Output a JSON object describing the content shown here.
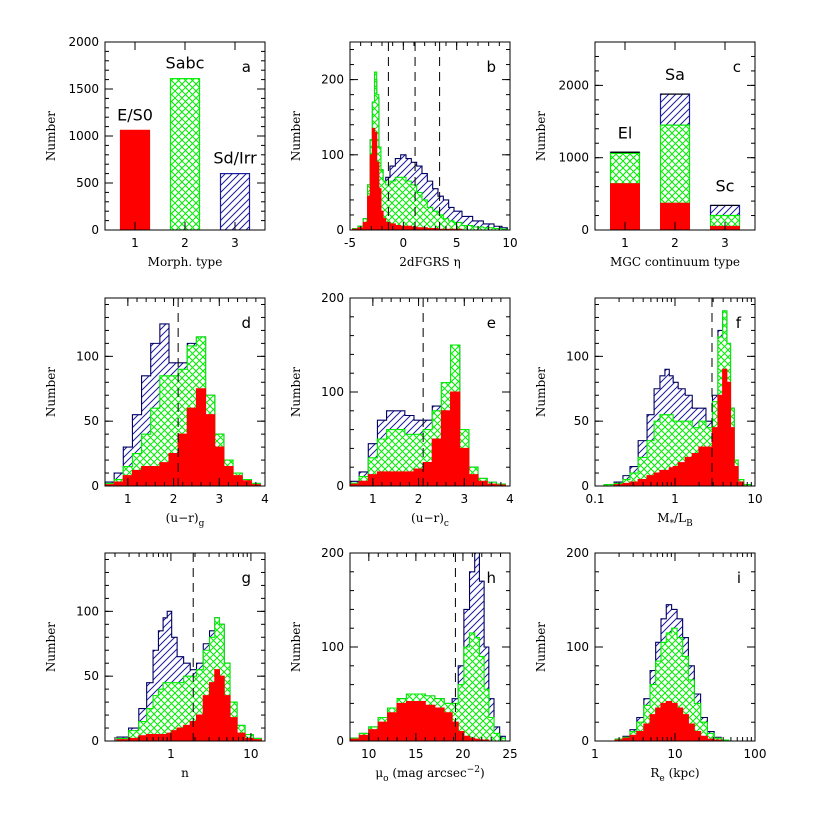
{
  "colors": {
    "red": "#ff0000",
    "green": "#00ee00",
    "blue": "#1a1a9c",
    "frame": "#000000"
  },
  "chart_data": [
    {
      "id": "a",
      "type": "bar",
      "letter": "a",
      "xlabel": "Morph. type",
      "ylabel": "Number",
      "xlim": [
        0.4,
        3.6
      ],
      "ylim": [
        0,
        2000
      ],
      "xticks": [
        1,
        2,
        3
      ],
      "yticks": [
        0,
        500,
        1000,
        1500,
        2000
      ],
      "bars": [
        {
          "x": 1,
          "value": 1060,
          "style": "red",
          "label": "E/S0"
        },
        {
          "x": 2,
          "value": 1610,
          "style": "green",
          "label": "Sabc"
        },
        {
          "x": 3,
          "value": 600,
          "style": "blue",
          "label": "Sd/Irr"
        }
      ]
    },
    {
      "id": "b",
      "type": "histogram",
      "letter": "b",
      "xlabel": "2dFGRS η",
      "ylabel": "Number",
      "xlim": [
        -5,
        10
      ],
      "ylim": [
        0,
        250
      ],
      "xticks": [
        -5,
        0,
        5,
        10
      ],
      "yticks": [
        0,
        100,
        200
      ],
      "dividers": [
        -1.4,
        1.1,
        3.4
      ],
      "x": [
        -4.5,
        -4,
        -3.5,
        -3.2,
        -3,
        -2.8,
        -2.6,
        -2.4,
        -2.2,
        -2,
        -1.8,
        -1.5,
        -1,
        -0.5,
        0,
        0.5,
        1,
        1.5,
        2,
        2.5,
        3,
        3.5,
        4,
        4.5,
        5,
        6,
        7,
        8,
        9,
        9.5
      ],
      "series": [
        {
          "style": "blue",
          "values": [
            2,
            5,
            15,
            60,
            120,
            170,
            200,
            175,
            110,
            80,
            65,
            70,
            85,
            95,
            100,
            95,
            90,
            85,
            75,
            65,
            55,
            45,
            40,
            30,
            25,
            18,
            12,
            8,
            5,
            3
          ]
        },
        {
          "style": "green",
          "values": [
            2,
            5,
            15,
            60,
            120,
            170,
            210,
            180,
            110,
            80,
            65,
            60,
            65,
            70,
            70,
            65,
            60,
            50,
            40,
            30,
            25,
            20,
            15,
            12,
            10,
            6,
            4,
            3,
            2,
            1
          ]
        },
        {
          "style": "red",
          "values": [
            1,
            3,
            10,
            45,
            100,
            135,
            130,
            90,
            55,
            25,
            15,
            10,
            8,
            6,
            5,
            5,
            4,
            3,
            3,
            2,
            2,
            1,
            1,
            1,
            1,
            0,
            0,
            0,
            0,
            0
          ]
        }
      ]
    },
    {
      "id": "c",
      "type": "bar",
      "letter": "c",
      "xlabel": "MGC continuum type",
      "ylabel": "Number",
      "xlim": [
        0.4,
        3.6
      ],
      "ylim": [
        0,
        2600
      ],
      "xticks": [
        1,
        2,
        3
      ],
      "yticks": [
        0,
        1000,
        2000
      ],
      "stacks": [
        {
          "x": 1,
          "label": "El",
          "red": 640,
          "green": 1060,
          "blue": 1075
        },
        {
          "x": 2,
          "label": "Sa",
          "red": 370,
          "green": 1450,
          "blue": 1880
        },
        {
          "x": 3,
          "label": "Sc",
          "red": 50,
          "green": 200,
          "blue": 340
        }
      ]
    },
    {
      "id": "d",
      "type": "histogram",
      "letter": "d",
      "xlabel": "(u−r)",
      "xlabel_sub": "g",
      "ylabel": "Number",
      "xlim": [
        0.5,
        4
      ],
      "ylim": [
        0,
        145
      ],
      "xticks": [
        1,
        2,
        3,
        4
      ],
      "yticks": [
        0,
        50,
        100
      ],
      "dividers": [
        2.1
      ],
      "x": [
        0.6,
        0.8,
        1,
        1.2,
        1.4,
        1.6,
        1.8,
        2,
        2.2,
        2.4,
        2.6,
        2.8,
        3,
        3.2,
        3.4,
        3.6,
        3.8
      ],
      "series": [
        {
          "style": "blue",
          "values": [
            3,
            10,
            30,
            55,
            85,
            110,
            125,
            95,
            95,
            110,
            115,
            70,
            40,
            20,
            10,
            5,
            2
          ]
        },
        {
          "style": "green",
          "values": [
            2,
            5,
            15,
            25,
            40,
            60,
            85,
            85,
            90,
            108,
            115,
            70,
            40,
            20,
            10,
            5,
            2
          ]
        },
        {
          "style": "red",
          "values": [
            1,
            3,
            8,
            12,
            15,
            15,
            18,
            25,
            40,
            60,
            75,
            55,
            30,
            15,
            8,
            4,
            1
          ]
        }
      ]
    },
    {
      "id": "e",
      "type": "histogram",
      "letter": "e",
      "xlabel": "(u−r)",
      "xlabel_sub": "c",
      "ylabel": "Number",
      "xlim": [
        0.5,
        4
      ],
      "ylim": [
        0,
        200
      ],
      "xticks": [
        1,
        2,
        3,
        4
      ],
      "yticks": [
        0,
        100,
        200
      ],
      "dividers": [
        2.1
      ],
      "x": [
        0.6,
        0.8,
        1,
        1.2,
        1.4,
        1.6,
        1.8,
        2,
        2.2,
        2.4,
        2.6,
        2.8,
        3,
        3.2,
        3.4,
        3.6,
        3.8
      ],
      "series": [
        {
          "style": "blue",
          "values": [
            5,
            15,
            45,
            70,
            80,
            80,
            75,
            70,
            70,
            85,
            110,
            150,
            60,
            20,
            8,
            4,
            2
          ]
        },
        {
          "style": "green",
          "values": [
            3,
            10,
            30,
            50,
            60,
            60,
            55,
            55,
            60,
            80,
            110,
            150,
            60,
            20,
            8,
            4,
            2
          ]
        },
        {
          "style": "red",
          "values": [
            2,
            5,
            12,
            15,
            15,
            15,
            15,
            18,
            25,
            50,
            80,
            100,
            40,
            12,
            5,
            2,
            1
          ]
        }
      ]
    },
    {
      "id": "f",
      "type": "histogram",
      "letter": "f",
      "xscale": "log",
      "xlabel": "M",
      "xlabel_sub": "*",
      "xlabel_tail": "/L",
      "xlabel_sub2": "B",
      "ylabel": "Number",
      "xlim": [
        0.1,
        10
      ],
      "ylim": [
        0,
        145
      ],
      "xticks": [
        0.1,
        1,
        10
      ],
      "yticks": [
        0,
        50,
        100
      ],
      "dividers": [
        2.9
      ],
      "x": [
        0.15,
        0.2,
        0.25,
        0.3,
        0.4,
        0.5,
        0.6,
        0.7,
        0.8,
        0.9,
        1,
        1.2,
        1.5,
        1.8,
        2.2,
        2.7,
        3.2,
        3.7,
        4.2,
        4.7,
        5.2,
        5.8,
        6.5,
        8
      ],
      "series": [
        {
          "style": "blue",
          "values": [
            1,
            3,
            8,
            15,
            35,
            55,
            75,
            85,
            90,
            85,
            80,
            75,
            70,
            60,
            60,
            50,
            70,
            120,
            135,
            110,
            60,
            20,
            5,
            1
          ]
        },
        {
          "style": "green",
          "values": [
            1,
            2,
            5,
            10,
            22,
            35,
            50,
            55,
            55,
            55,
            50,
            50,
            50,
            45,
            50,
            45,
            65,
            115,
            135,
            110,
            60,
            20,
            5,
            1
          ]
        },
        {
          "style": "red",
          "values": [
            0,
            1,
            2,
            3,
            5,
            8,
            10,
            12,
            12,
            14,
            15,
            18,
            22,
            25,
            30,
            30,
            45,
            70,
            90,
            80,
            45,
            15,
            3,
            0
          ]
        }
      ]
    },
    {
      "id": "g",
      "type": "histogram",
      "letter": "g",
      "xscale": "log",
      "xlabel": "n",
      "ylabel": "Number",
      "xlim": [
        0.15,
        15
      ],
      "ylim": [
        0,
        145
      ],
      "xticks": [
        1,
        10
      ],
      "yticks": [
        0,
        50,
        100
      ],
      "dividers": [
        1.9
      ],
      "x": [
        0.25,
        0.35,
        0.45,
        0.55,
        0.65,
        0.75,
        0.85,
        0.95,
        1.1,
        1.3,
        1.6,
        1.9,
        2.3,
        2.8,
        3.3,
        3.8,
        4.3,
        5,
        6,
        7.5,
        9.5,
        12
      ],
      "series": [
        {
          "style": "blue",
          "values": [
            3,
            10,
            25,
            45,
            70,
            85,
            95,
            100,
            80,
            65,
            60,
            55,
            60,
            75,
            85,
            95,
            90,
            60,
            30,
            12,
            5,
            2
          ]
        },
        {
          "style": "green",
          "values": [
            2,
            8,
            15,
            25,
            35,
            40,
            45,
            45,
            45,
            45,
            50,
            50,
            55,
            70,
            80,
            95,
            90,
            60,
            30,
            12,
            5,
            2
          ]
        },
        {
          "style": "red",
          "values": [
            1,
            2,
            4,
            5,
            5,
            5,
            5,
            6,
            8,
            10,
            12,
            15,
            20,
            35,
            45,
            55,
            50,
            35,
            18,
            6,
            2,
            1
          ]
        }
      ]
    },
    {
      "id": "h",
      "type": "histogram",
      "letter": "h",
      "xlabel": "μ",
      "xlabel_sub": "o",
      "xlabel_tail": " (mag arcsec",
      "xlabel_sup": "−2",
      "xlabel_end": ")",
      "ylabel": "Number",
      "xlim": [
        8,
        25
      ],
      "ylim": [
        0,
        200
      ],
      "xticks": [
        10,
        15,
        20,
        25
      ],
      "yticks": [
        0,
        100,
        200
      ],
      "dividers": [
        19.2
      ],
      "x": [
        8.5,
        9.5,
        10.5,
        11.5,
        12.5,
        13.5,
        14.5,
        15.5,
        16.5,
        17.5,
        18.5,
        19.2,
        19.8,
        20.4,
        21,
        21.5,
        22,
        22.5,
        23,
        23.6,
        24.2
      ],
      "series": [
        {
          "style": "blue",
          "values": [
            3,
            8,
            15,
            25,
            35,
            45,
            50,
            50,
            48,
            45,
            40,
            45,
            80,
            140,
            180,
            210,
            170,
            100,
            45,
            15,
            5
          ]
        },
        {
          "style": "green",
          "values": [
            3,
            8,
            15,
            25,
            35,
            45,
            50,
            50,
            48,
            45,
            40,
            40,
            60,
            100,
            115,
            110,
            90,
            55,
            25,
            8,
            3
          ]
        },
        {
          "style": "red",
          "values": [
            2,
            6,
            12,
            20,
            30,
            40,
            42,
            42,
            38,
            35,
            30,
            20,
            10,
            5,
            3,
            2,
            1,
            1,
            0,
            0,
            0
          ]
        }
      ]
    },
    {
      "id": "i",
      "type": "histogram",
      "letter": "i",
      "xscale": "log",
      "xlabel": "R",
      "xlabel_sub": "e",
      "xlabel_tail": " (kpc)",
      "ylabel": "Number",
      "xlim": [
        1,
        100
      ],
      "ylim": [
        0,
        200
      ],
      "xticks": [
        1,
        10,
        100
      ],
      "yticks": [
        0,
        100,
        200
      ],
      "dividers": [],
      "x": [
        2,
        2.5,
        3,
        3.7,
        4.5,
        5.3,
        6.2,
        7.2,
        8.4,
        9.8,
        11.5,
        13.5,
        16,
        19,
        23,
        28,
        34,
        42
      ],
      "series": [
        {
          "style": "blue",
          "values": [
            2,
            5,
            12,
            25,
            45,
            75,
            105,
            130,
            145,
            140,
            130,
            110,
            80,
            50,
            25,
            10,
            4,
            1
          ]
        },
        {
          "style": "green",
          "values": [
            2,
            4,
            10,
            20,
            38,
            60,
            85,
            105,
            115,
            120,
            110,
            90,
            65,
            40,
            20,
            8,
            3,
            1
          ]
        },
        {
          "style": "red",
          "values": [
            1,
            3,
            6,
            10,
            18,
            28,
            35,
            40,
            42,
            40,
            35,
            28,
            18,
            10,
            5,
            2,
            1,
            0
          ]
        }
      ]
    }
  ]
}
